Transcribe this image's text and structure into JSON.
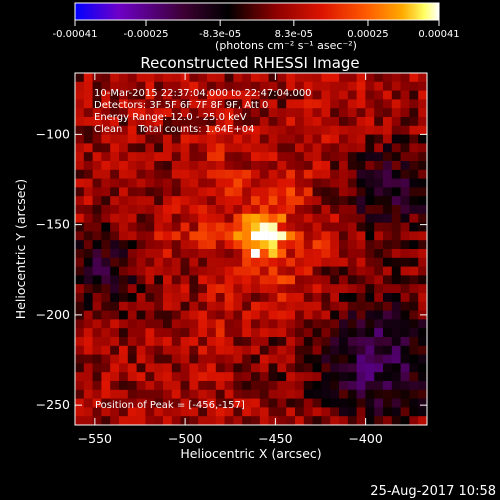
{
  "chart_data": {
    "type": "heatmap",
    "title": "Reconstructed RHESSI Image",
    "xlabel": "Heliocentric X (arcsec)",
    "ylabel": "Heliocentric Y (arcsec)",
    "xlim": [
      -561,
      -366
    ],
    "ylim": [
      -261,
      -66
    ],
    "x_ticks": [
      -550,
      -500,
      -450,
      -400
    ],
    "y_ticks": [
      -100,
      -150,
      -200,
      -250
    ],
    "colorbar": {
      "min": -0.00041,
      "max": 0.00041,
      "tick_values": [
        -0.00041,
        -0.00025,
        -8.3e-05,
        8.3e-05,
        0.00025,
        0.00041
      ],
      "tick_labels": [
        "-0.00041",
        "-0.00025",
        "-8.3e-05",
        "8.3e-05",
        "0.00025",
        "0.00041"
      ],
      "unit": "(photons cm⁻² s⁻¹ asec⁻²)",
      "colors": [
        "#0000ff",
        "#6e00c8",
        "#3c0032",
        "#000000",
        "#8c0000",
        "#dc1400",
        "#ff5a00",
        "#ffaa00",
        "#ffff64",
        "#ffffff"
      ]
    },
    "annotations": {
      "line1": "10-Mar-2015 22:37:04.000 to 22:47:04.000",
      "line2": "Detectors: 3F 5F 6F 7F 8F 9F, Att 0",
      "line3": "Energy Range: 12.0 - 25.0 keV",
      "line4": "Clean     Total counts: 1.64E+04",
      "peak_label": "Position of Peak = [-456,-157]"
    },
    "peak": {
      "x": -456,
      "y": -157
    },
    "grid": false
  },
  "footer": {
    "timestamp": "25-Aug-2017 10:58"
  }
}
